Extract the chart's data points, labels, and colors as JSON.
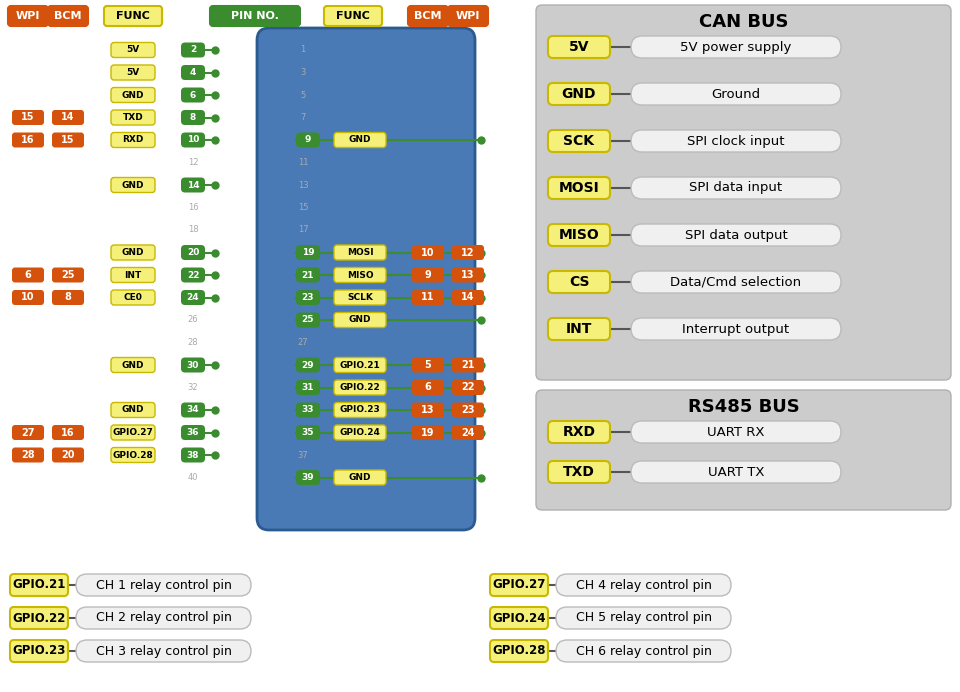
{
  "bg_color": "#ffffff",
  "orange": "#d4520c",
  "green": "#3a8c2f",
  "yellow_fill": "#f5f07a",
  "yellow_border": "#c8b800",
  "gray_panel": "#cccccc",
  "desc_fill": "#f0f0f0",
  "desc_border": "#bbbbbb",
  "blue_board": "#4a7ab5",
  "can_bus_title": "CAN BUS",
  "rs485_bus_title": "RS485 BUS",
  "can_bus_items": [
    {
      "label": "5V",
      "desc": "5V power supply"
    },
    {
      "label": "GND",
      "desc": "Ground"
    },
    {
      "label": "SCK",
      "desc": "SPI clock input"
    },
    {
      "label": "MOSI",
      "desc": "SPI data input"
    },
    {
      "label": "MISO",
      "desc": "SPI data output"
    },
    {
      "label": "CS",
      "desc": "Data/Cmd selection"
    },
    {
      "label": "INT",
      "desc": "Interrupt output"
    }
  ],
  "rs485_bus_items": [
    {
      "label": "RXD",
      "desc": "UART RX"
    },
    {
      "label": "TXD",
      "desc": "UART TX"
    }
  ],
  "gpio_items_left": [
    {
      "label": "GPIO.21",
      "desc": "CH 1 relay control pin"
    },
    {
      "label": "GPIO.22",
      "desc": "CH 2 relay control pin"
    },
    {
      "label": "GPIO.23",
      "desc": "CH 3 relay control pin"
    }
  ],
  "gpio_items_right": [
    {
      "label": "GPIO.27",
      "desc": "CH 4 relay control pin"
    },
    {
      "label": "GPIO.24",
      "desc": "CH 5 relay control pin"
    },
    {
      "label": "GPIO.28",
      "desc": "CH 6 relay control pin"
    }
  ],
  "left_pins": [
    {
      "func": "5V",
      "pin": "2",
      "wpi": null,
      "bcm": null
    },
    {
      "func": "5V",
      "pin": "4",
      "wpi": null,
      "bcm": null
    },
    {
      "func": "GND",
      "pin": "6",
      "wpi": null,
      "bcm": null
    },
    {
      "func": "TXD",
      "pin": "8",
      "wpi": "15",
      "bcm": "14"
    },
    {
      "func": "RXD",
      "pin": "10",
      "wpi": "16",
      "bcm": "15"
    },
    {
      "func": null,
      "pin": "12",
      "wpi": null,
      "bcm": null
    },
    {
      "func": "GND",
      "pin": "14",
      "wpi": null,
      "bcm": null
    },
    {
      "func": null,
      "pin": "16",
      "wpi": null,
      "bcm": null
    },
    {
      "func": null,
      "pin": "18",
      "wpi": null,
      "bcm": null
    },
    {
      "func": "GND",
      "pin": "20",
      "wpi": null,
      "bcm": null
    },
    {
      "func": "INT",
      "pin": "22",
      "wpi": "6",
      "bcm": "25"
    },
    {
      "func": "CE0",
      "pin": "24",
      "wpi": "10",
      "bcm": "8"
    },
    {
      "func": null,
      "pin": "26",
      "wpi": null,
      "bcm": null
    },
    {
      "func": null,
      "pin": "28",
      "wpi": null,
      "bcm": null
    },
    {
      "func": "GND",
      "pin": "30",
      "wpi": null,
      "bcm": null
    },
    {
      "func": null,
      "pin": "32",
      "wpi": null,
      "bcm": null
    },
    {
      "func": "GND",
      "pin": "34",
      "wpi": null,
      "bcm": null
    },
    {
      "func": "GPIO.27",
      "pin": "36",
      "wpi": "27",
      "bcm": "16"
    },
    {
      "func": "GPIO.28",
      "pin": "38",
      "wpi": "28",
      "bcm": "20"
    },
    {
      "func": null,
      "pin": "40",
      "wpi": null,
      "bcm": null
    }
  ],
  "right_pins": [
    {
      "func": null,
      "pin": "1",
      "wpi": null,
      "bcm": null
    },
    {
      "func": null,
      "pin": "3",
      "wpi": null,
      "bcm": null
    },
    {
      "func": null,
      "pin": "5",
      "wpi": null,
      "bcm": null
    },
    {
      "func": null,
      "pin": "7",
      "wpi": null,
      "bcm": null
    },
    {
      "func": "GND",
      "pin": "9",
      "wpi": null,
      "bcm": null
    },
    {
      "func": null,
      "pin": "11",
      "wpi": null,
      "bcm": null
    },
    {
      "func": null,
      "pin": "13",
      "wpi": null,
      "bcm": null
    },
    {
      "func": null,
      "pin": "15",
      "wpi": null,
      "bcm": null
    },
    {
      "func": null,
      "pin": "17",
      "wpi": null,
      "bcm": null
    },
    {
      "func": "MOSI",
      "pin": "19",
      "wpi": "12",
      "bcm": "10"
    },
    {
      "func": "MISO",
      "pin": "21",
      "wpi": "13",
      "bcm": "9"
    },
    {
      "func": "SCLK",
      "pin": "23",
      "wpi": "14",
      "bcm": "11"
    },
    {
      "func": "GND",
      "pin": "25",
      "wpi": null,
      "bcm": null
    },
    {
      "func": null,
      "pin": "27",
      "wpi": null,
      "bcm": null
    },
    {
      "func": "GPIO.21",
      "pin": "29",
      "wpi": "21",
      "bcm": "5"
    },
    {
      "func": "GPIO.22",
      "pin": "31",
      "wpi": "22",
      "bcm": "6"
    },
    {
      "func": "GPIO.23",
      "pin": "33",
      "wpi": "23",
      "bcm": "13"
    },
    {
      "func": "GPIO.24",
      "pin": "35",
      "wpi": "24",
      "bcm": "19"
    },
    {
      "func": null,
      "pin": "37",
      "wpi": null,
      "bcm": null
    },
    {
      "func": "GND",
      "pin": "39",
      "wpi": null,
      "bcm": null
    }
  ]
}
